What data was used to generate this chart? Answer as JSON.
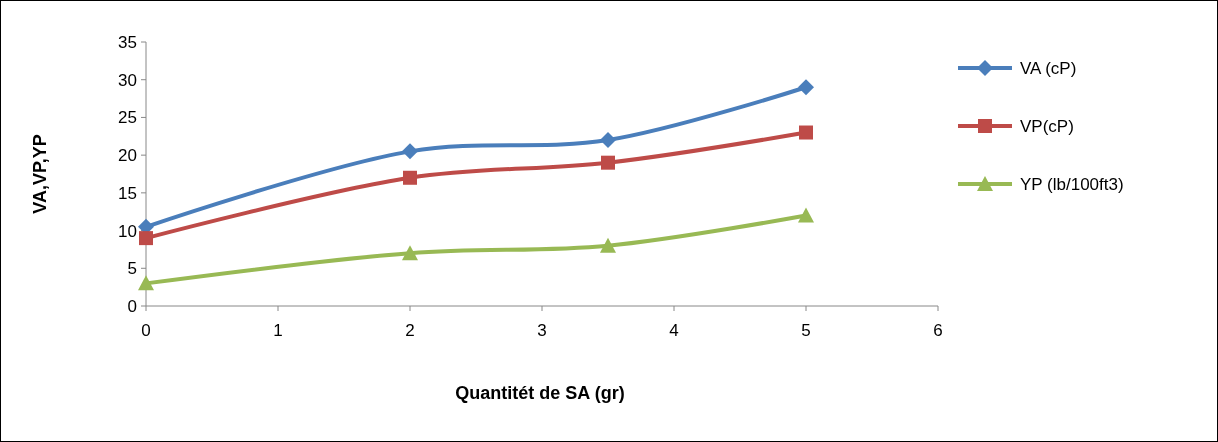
{
  "chart_data": {
    "type": "line",
    "xlabel": "Quantitét de  SA (gr)",
    "ylabel": "VA,VP,YP",
    "x": [
      0,
      2,
      3.5,
      5
    ],
    "series": [
      {
        "name": "VA (cP)",
        "color": "#4a7ebb",
        "values": [
          10.5,
          20.5,
          22,
          29
        ],
        "marker": "diamond"
      },
      {
        "name": "VP(cP)",
        "color": "#be4b48",
        "values": [
          9,
          17,
          19,
          23
        ],
        "marker": "square"
      },
      {
        "name": "YP (lb/100ft3)",
        "color": "#98b954",
        "values": [
          3,
          7,
          8,
          12
        ],
        "marker": "triangle"
      }
    ],
    "xlim": [
      0,
      6
    ],
    "xticks": [
      0,
      1,
      2,
      3,
      4,
      5,
      6
    ],
    "ylim": [
      0,
      35
    ],
    "yticks": [
      0,
      5,
      10,
      15,
      20,
      25,
      30,
      35
    ],
    "grid": false,
    "legend": "right",
    "line_style": "solid"
  }
}
